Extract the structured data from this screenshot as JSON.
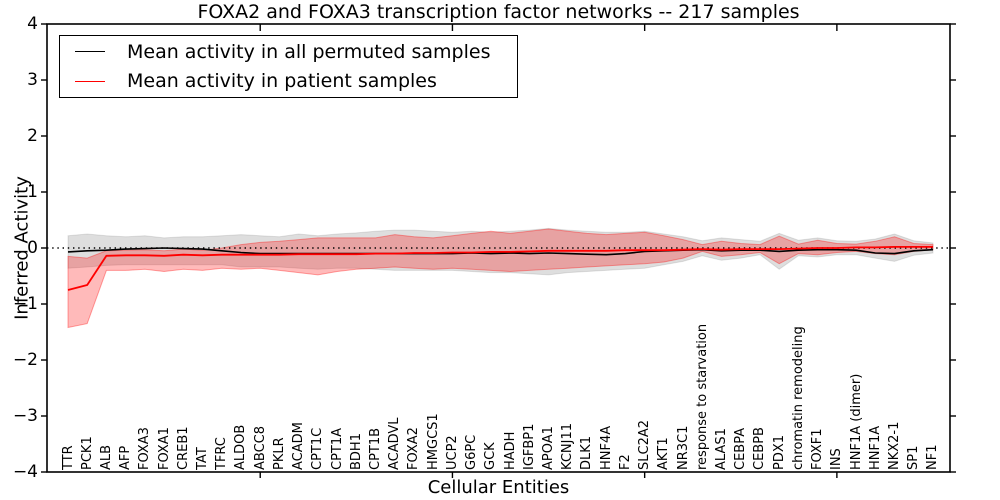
{
  "title": "FOXA2 and FOXA3 transcription factor networks -- 217 samples",
  "axes": {
    "ylabel": "Inferred Activity",
    "xlabel": "Cellular Entities",
    "yticks": [
      {
        "label": "4",
        "value": 4
      },
      {
        "label": "3",
        "value": 3
      },
      {
        "label": "2",
        "value": 2
      },
      {
        "label": "1",
        "value": 1
      },
      {
        "label": "0",
        "value": 0
      },
      {
        "label": "−1",
        "value": -1
      },
      {
        "label": "−2",
        "value": -2
      },
      {
        "label": "−3",
        "value": -3
      },
      {
        "label": "−4",
        "value": -4
      }
    ]
  },
  "legend": [
    {
      "label": "Mean activity in all permuted samples",
      "color": "#000000"
    },
    {
      "label": "Mean activity in patient samples",
      "color": "#ff0000"
    }
  ],
  "colors": {
    "permuted_line": "#000000",
    "patient_line": "#ff0000",
    "permuted_band_fill": "rgba(0,0,0,0.13)",
    "permuted_band_edge": "rgba(0,0,0,0.10)",
    "patient_band_fill": "rgba(255,0,0,0.27)",
    "patient_band_edge": "rgba(255,0,0,0.35)",
    "zero_line": "#000000",
    "frame": "#000000"
  },
  "chart_data": {
    "type": "line",
    "title": "FOXA2 and FOXA3 transcription factor networks -- 217 samples",
    "xlabel": "Cellular Entities",
    "ylabel": "Inferred Activity",
    "ylim": [
      -4,
      4
    ],
    "grid": false,
    "legend_position": "upper left",
    "zero_reference_line": 0,
    "categories": [
      "TTR",
      "PCK1",
      "ALB",
      "AFP",
      "FOXA3",
      "FOXA1",
      "CREB1",
      "TAT",
      "TFRC",
      "ALDOB",
      "ABCC8",
      "PKLR",
      "ACADM",
      "CPT1C",
      "CPT1A",
      "BDH1",
      "CPT1B",
      "ACADVL",
      "FOXA2",
      "HMGCS1",
      "UCP2",
      "G6PC",
      "GCK",
      "HADH",
      "IGFBP1",
      "APOA1",
      "KCNJ11",
      "DLK1",
      "HNF4A",
      "F2",
      "SLC2A2",
      "AKT1",
      "NR3C1",
      "response to starvation",
      "ALAS1",
      "CEBPA",
      "CEBPB",
      "PDX1",
      "chromatin remodeling",
      "FOXF1",
      "INS",
      "HNF1A (dimer)",
      "HNF1A",
      "NKX2-1",
      "SP1",
      "NF1"
    ],
    "series": [
      {
        "name": "Mean activity in all permuted samples",
        "color": "#000000",
        "values": [
          -0.07,
          -0.05,
          -0.04,
          -0.02,
          -0.01,
          0.0,
          -0.01,
          -0.02,
          -0.05,
          -0.08,
          -0.1,
          -0.1,
          -0.1,
          -0.1,
          -0.1,
          -0.1,
          -0.1,
          -0.1,
          -0.1,
          -0.1,
          -0.1,
          -0.09,
          -0.1,
          -0.09,
          -0.1,
          -0.09,
          -0.1,
          -0.11,
          -0.12,
          -0.1,
          -0.06,
          -0.05,
          -0.04,
          -0.03,
          -0.05,
          -0.04,
          -0.04,
          -0.06,
          -0.04,
          -0.03,
          -0.03,
          -0.04,
          -0.09,
          -0.1,
          -0.05,
          -0.03
        ]
      },
      {
        "name": "Mean activity in patient samples",
        "color": "#ff0000",
        "values": [
          -0.75,
          -0.66,
          -0.14,
          -0.13,
          -0.13,
          -0.14,
          -0.12,
          -0.13,
          -0.12,
          -0.12,
          -0.12,
          -0.12,
          -0.11,
          -0.11,
          -0.11,
          -0.11,
          -0.1,
          -0.1,
          -0.09,
          -0.09,
          -0.08,
          -0.08,
          -0.07,
          -0.07,
          -0.06,
          -0.05,
          -0.05,
          -0.05,
          -0.05,
          -0.04,
          -0.04,
          -0.04,
          -0.03,
          -0.02,
          -0.03,
          -0.02,
          -0.02,
          -0.02,
          -0.01,
          0.0,
          0.0,
          0.01,
          0.01,
          0.02,
          0.02,
          0.02
        ]
      }
    ],
    "bands": [
      {
        "name": "permuted samples range",
        "fill": "rgba(0,0,0,0.13)",
        "edge": "rgba(0,0,0,0.10)",
        "high": [
          0.22,
          0.25,
          0.22,
          0.2,
          0.22,
          0.18,
          0.2,
          0.2,
          0.22,
          0.24,
          0.22,
          0.2,
          0.25,
          0.22,
          0.25,
          0.27,
          0.3,
          0.32,
          0.32,
          0.3,
          0.28,
          0.3,
          0.28,
          0.3,
          0.32,
          0.35,
          0.32,
          0.3,
          0.28,
          0.28,
          0.3,
          0.25,
          0.2,
          0.13,
          0.18,
          0.15,
          0.12,
          0.26,
          0.14,
          0.18,
          0.13,
          0.12,
          0.16,
          0.25,
          0.13,
          0.09
        ],
        "low": [
          -0.36,
          -0.34,
          -0.31,
          -0.3,
          -0.3,
          -0.3,
          -0.3,
          -0.3,
          -0.3,
          -0.34,
          -0.34,
          -0.34,
          -0.36,
          -0.38,
          -0.36,
          -0.36,
          -0.38,
          -0.4,
          -0.4,
          -0.4,
          -0.4,
          -0.42,
          -0.44,
          -0.44,
          -0.46,
          -0.48,
          -0.44,
          -0.42,
          -0.4,
          -0.38,
          -0.36,
          -0.3,
          -0.24,
          -0.14,
          -0.22,
          -0.18,
          -0.12,
          -0.38,
          -0.14,
          -0.16,
          -0.12,
          -0.12,
          -0.18,
          -0.24,
          -0.13,
          -0.09
        ]
      },
      {
        "name": "patient samples range",
        "fill": "rgba(255,0,0,0.27)",
        "edge": "rgba(255,0,0,0.35)",
        "high": [
          -0.15,
          -0.18,
          -0.05,
          -0.04,
          -0.03,
          -0.05,
          -0.02,
          -0.04,
          0.0,
          0.06,
          0.1,
          0.12,
          0.15,
          0.18,
          0.18,
          0.18,
          0.18,
          0.24,
          0.2,
          0.18,
          0.22,
          0.26,
          0.3,
          0.26,
          0.3,
          0.34,
          0.3,
          0.26,
          0.24,
          0.26,
          0.28,
          0.22,
          0.15,
          0.06,
          0.12,
          0.08,
          0.06,
          0.21,
          0.07,
          0.14,
          0.08,
          0.07,
          0.12,
          0.2,
          0.08,
          0.06
        ],
        "low": [
          -1.42,
          -1.35,
          -0.4,
          -0.4,
          -0.38,
          -0.42,
          -0.38,
          -0.4,
          -0.36,
          -0.38,
          -0.36,
          -0.4,
          -0.44,
          -0.48,
          -0.42,
          -0.38,
          -0.36,
          -0.34,
          -0.36,
          -0.38,
          -0.36,
          -0.38,
          -0.4,
          -0.42,
          -0.4,
          -0.38,
          -0.36,
          -0.34,
          -0.32,
          -0.3,
          -0.28,
          -0.25,
          -0.18,
          -0.06,
          -0.15,
          -0.12,
          -0.08,
          -0.28,
          -0.1,
          -0.12,
          -0.08,
          -0.06,
          -0.1,
          -0.12,
          -0.06,
          -0.03
        ]
      }
    ]
  }
}
